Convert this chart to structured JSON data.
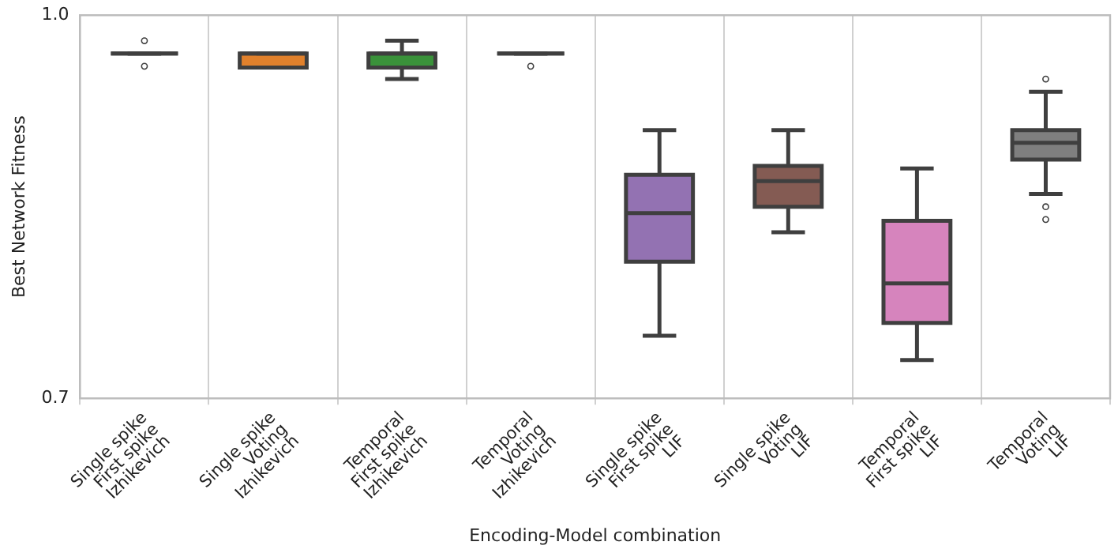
{
  "chart_data": {
    "type": "box",
    "xlabel": "Encoding-Model combination",
    "ylabel": "Best Network Fitness",
    "categories": [
      "Single spike\nFirst spike\nIzhikevich",
      "Single spike\nVoting\nIzhikevich",
      "Temporal\nFirst spike\nIzhikevich",
      "Temporal\nVoting\nIzhikevich",
      "Single spike\nFirst spike\nLIF",
      "Single spike\nVoting\nLIF",
      "Temporal\nFirst spike\nLIF",
      "Temporal\nVoting\nLIF"
    ],
    "colors": [
      null,
      "#e1812c",
      "#3a923a",
      null,
      "#9372b2",
      "#845b53",
      "#d684bd",
      "#7f7f7f"
    ],
    "boxes": [
      {
        "low": 0.97,
        "q1": 0.97,
        "median": 0.97,
        "q3": 0.97,
        "high": 0.97,
        "outliers": [
          0.98,
          0.96
        ]
      },
      {
        "low": 0.959,
        "q1": 0.959,
        "median": 0.97,
        "q3": 0.97,
        "high": 0.97
      },
      {
        "low": 0.95,
        "q1": 0.959,
        "median": 0.97,
        "q3": 0.97,
        "high": 0.98
      },
      {
        "low": 0.97,
        "q1": 0.97,
        "median": 0.97,
        "q3": 0.97,
        "high": 0.97,
        "outliers": [
          0.96
        ]
      },
      {
        "low": 0.749,
        "q1": 0.807,
        "median": 0.845,
        "q3": 0.875,
        "high": 0.91
      },
      {
        "low": 0.83,
        "q1": 0.85,
        "median": 0.87,
        "q3": 0.882,
        "high": 0.91
      },
      {
        "low": 0.73,
        "q1": 0.759,
        "median": 0.79,
        "q3": 0.839,
        "high": 0.88
      },
      {
        "low": 0.86,
        "q1": 0.887,
        "median": 0.9,
        "q3": 0.91,
        "high": 0.94,
        "outliers": [
          0.95,
          0.85,
          0.84
        ]
      }
    ],
    "ylim": [
      0.7,
      1.0
    ],
    "yticks": [
      {
        "value": 0.7,
        "label": "0.7"
      },
      {
        "value": 1.0,
        "label": "1.0"
      }
    ],
    "grid": "x",
    "legend": false
  }
}
